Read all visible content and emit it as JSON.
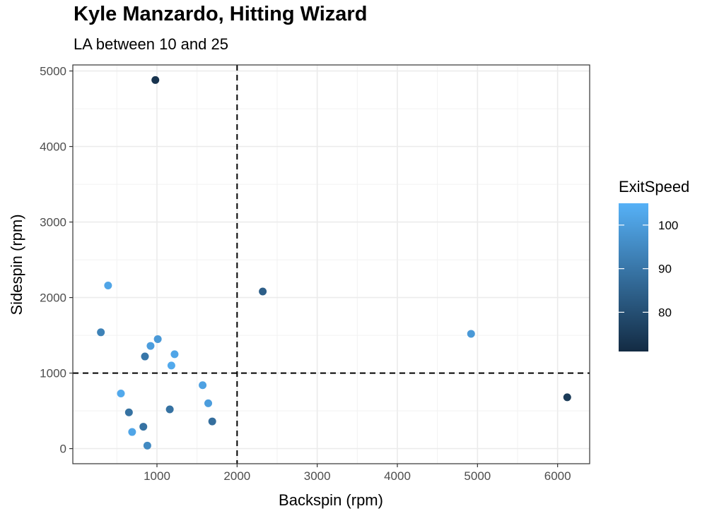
{
  "chart_data": {
    "type": "scatter",
    "title": "Kyle Manzardo, Hitting Wizard",
    "subtitle": "LA between 10 and 25",
    "xlabel": "Backspin (rpm)",
    "ylabel": "Sidespin (rpm)",
    "xlim": [
      -50,
      6400
    ],
    "ylim": [
      -200,
      5080
    ],
    "x_ticks": [
      1000,
      2000,
      3000,
      4000,
      5000,
      6000
    ],
    "y_ticks": [
      0,
      1000,
      2000,
      3000,
      4000,
      5000
    ],
    "grid": true,
    "reference_lines": {
      "vertical_x": 2000,
      "horizontal_y": 1000,
      "style": "dashed"
    },
    "color_by": "ExitSpeed",
    "legend": {
      "title": "ExitSpeed",
      "position": "right",
      "range": [
        71,
        105
      ],
      "ticks": [
        80,
        90,
        100
      ],
      "low_color": "#132b43",
      "high_color": "#56b1f7"
    },
    "points": [
      {
        "x": 980,
        "y": 4880,
        "exit_speed": 73
      },
      {
        "x": 390,
        "y": 2160,
        "exit_speed": 102
      },
      {
        "x": 2320,
        "y": 2080,
        "exit_speed": 84
      },
      {
        "x": 300,
        "y": 1540,
        "exit_speed": 93
      },
      {
        "x": 1010,
        "y": 1450,
        "exit_speed": 99
      },
      {
        "x": 920,
        "y": 1360,
        "exit_speed": 100
      },
      {
        "x": 850,
        "y": 1220,
        "exit_speed": 90
      },
      {
        "x": 1220,
        "y": 1250,
        "exit_speed": 102
      },
      {
        "x": 1180,
        "y": 1100,
        "exit_speed": 103
      },
      {
        "x": 4920,
        "y": 1520,
        "exit_speed": 99
      },
      {
        "x": 550,
        "y": 730,
        "exit_speed": 103
      },
      {
        "x": 1570,
        "y": 840,
        "exit_speed": 101
      },
      {
        "x": 1640,
        "y": 600,
        "exit_speed": 100
      },
      {
        "x": 650,
        "y": 480,
        "exit_speed": 89
      },
      {
        "x": 1160,
        "y": 520,
        "exit_speed": 89
      },
      {
        "x": 1690,
        "y": 360,
        "exit_speed": 88
      },
      {
        "x": 830,
        "y": 290,
        "exit_speed": 89
      },
      {
        "x": 690,
        "y": 220,
        "exit_speed": 102
      },
      {
        "x": 880,
        "y": 40,
        "exit_speed": 95
      },
      {
        "x": 6120,
        "y": 680,
        "exit_speed": 75
      }
    ]
  }
}
